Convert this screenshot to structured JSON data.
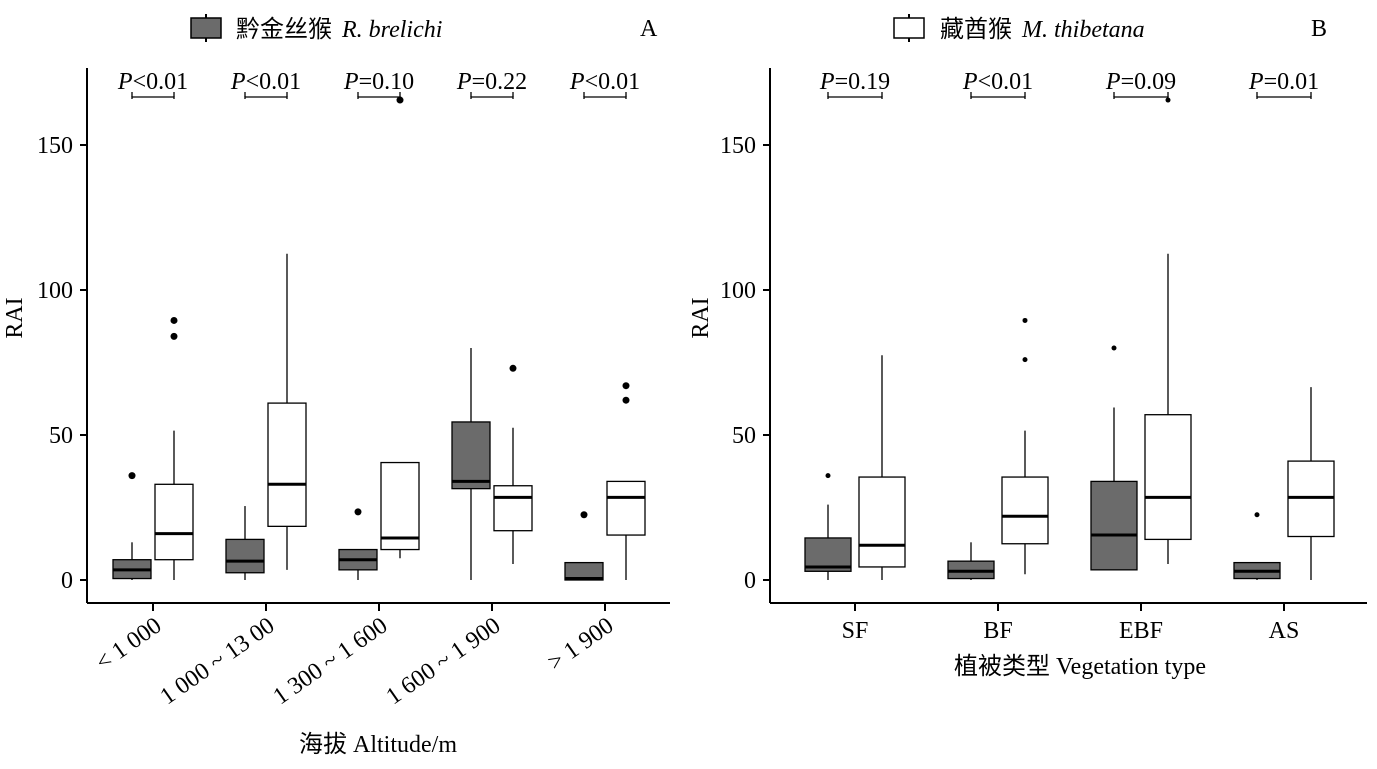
{
  "chart_data": [
    {
      "panel_label": "A",
      "type": "boxplot",
      "legend": {
        "label": "黔金丝猴",
        "label_italic": "R. brelichi",
        "color": "#6b6b6b"
      },
      "xlabel": "海拔 Altitude/m",
      "ylabel": "RAI",
      "yticks": [
        0,
        50,
        100,
        150
      ],
      "ylim": [
        -8,
        175
      ],
      "categories": [
        "< 1 000",
        "1 000 ~ 13 00",
        "1 300 ~ 1 600",
        "1 600 ~ 1 900",
        "> 1 900"
      ],
      "p_values": [
        {
          "p": "P",
          "rest": "<0.01"
        },
        {
          "p": "P",
          "rest": "<0.01"
        },
        {
          "p": "P",
          "rest": "=0.10"
        },
        {
          "p": "P",
          "rest": "=0.22"
        },
        {
          "p": "P",
          "rest": "<0.01"
        }
      ],
      "series": [
        {
          "name": "R. brelichi",
          "color": "#6b6b6b",
          "boxes": [
            {
              "min": 0,
              "q1": 0.5,
              "median": 3.5,
              "q3": 7,
              "max": 13,
              "outliers": [
                36
              ]
            },
            {
              "min": 0,
              "q1": 2.5,
              "median": 6.5,
              "q3": 14,
              "max": 25.5,
              "outliers": []
            },
            {
              "min": 0,
              "q1": 3.5,
              "median": 7,
              "q3": 10.5,
              "max": 10.5,
              "outliers": [
                23.5
              ]
            },
            {
              "min": 0,
              "q1": 31.5,
              "median": 34,
              "q3": 54.5,
              "max": 80,
              "outliers": []
            },
            {
              "min": 0,
              "q1": 0,
              "median": 0.5,
              "q3": 6,
              "max": 6,
              "outliers": [
                22.5
              ]
            }
          ]
        },
        {
          "name": "M. thibetana",
          "color": "#ffffff",
          "boxes": [
            {
              "min": 0,
              "q1": 7,
              "median": 16,
              "q3": 33,
              "max": 51.5,
              "outliers": [
                84,
                89.5
              ]
            },
            {
              "min": 3.5,
              "q1": 18.5,
              "median": 33,
              "q3": 61,
              "max": 112.5,
              "outliers": []
            },
            {
              "min": 7.5,
              "q1": 10.5,
              "median": 14.5,
              "q3": 40.5,
              "max": 40.5,
              "outliers": [
                165.5
              ]
            },
            {
              "min": 5.5,
              "q1": 17,
              "median": 28.5,
              "q3": 32.5,
              "max": 52.5,
              "outliers": [
                73
              ]
            },
            {
              "min": 0,
              "q1": 15.5,
              "median": 28.5,
              "q3": 34,
              "max": 34,
              "outliers": [
                62,
                67
              ]
            }
          ]
        }
      ]
    },
    {
      "panel_label": "B",
      "type": "boxplot",
      "legend": {
        "label": "藏酋猴",
        "label_italic": "M. thibetana",
        "color": "#ffffff"
      },
      "xlabel": "植被类型 Vegetation type",
      "ylabel": "RAI",
      "yticks": [
        0,
        50,
        100,
        150
      ],
      "ylim": [
        -8,
        175
      ],
      "categories": [
        "SF",
        "BF",
        "EBF",
        "AS"
      ],
      "p_values": [
        {
          "p": "P",
          "rest": "=0.19"
        },
        {
          "p": "P",
          "rest": "<0.01"
        },
        {
          "p": "P",
          "rest": "=0.09"
        },
        {
          "p": "P",
          "rest": "=0.01"
        }
      ],
      "series": [
        {
          "name": "R. brelichi",
          "color": "#6b6b6b",
          "boxes": [
            {
              "min": 0,
              "q1": 3,
              "median": 4.5,
              "q3": 14.5,
              "max": 26,
              "outliers": [
                36
              ]
            },
            {
              "min": 0,
              "q1": 0.5,
              "median": 3,
              "q3": 6.5,
              "max": 13,
              "outliers": []
            },
            {
              "min": 3.5,
              "q1": 3.5,
              "median": 15.5,
              "q3": 34,
              "max": 59.5,
              "outliers": [
                80
              ]
            },
            {
              "min": 0,
              "q1": 0.5,
              "median": 3,
              "q3": 6,
              "max": 6,
              "outliers": [
                22.5
              ]
            }
          ]
        },
        {
          "name": "M. thibetana",
          "color": "#ffffff",
          "boxes": [
            {
              "min": 0,
              "q1": 4.5,
              "median": 12,
              "q3": 35.5,
              "max": 77.5,
              "outliers": []
            },
            {
              "min": 2,
              "q1": 12.5,
              "median": 22,
              "q3": 35.5,
              "max": 51.5,
              "outliers": [
                76,
                89.5
              ]
            },
            {
              "min": 5.5,
              "q1": 14,
              "median": 28.5,
              "q3": 57,
              "max": 112.5,
              "outliers": [
                165.5
              ]
            },
            {
              "min": 0,
              "q1": 15,
              "median": 28.5,
              "q3": 41,
              "max": 66.5,
              "outliers": []
            }
          ]
        }
      ]
    }
  ]
}
